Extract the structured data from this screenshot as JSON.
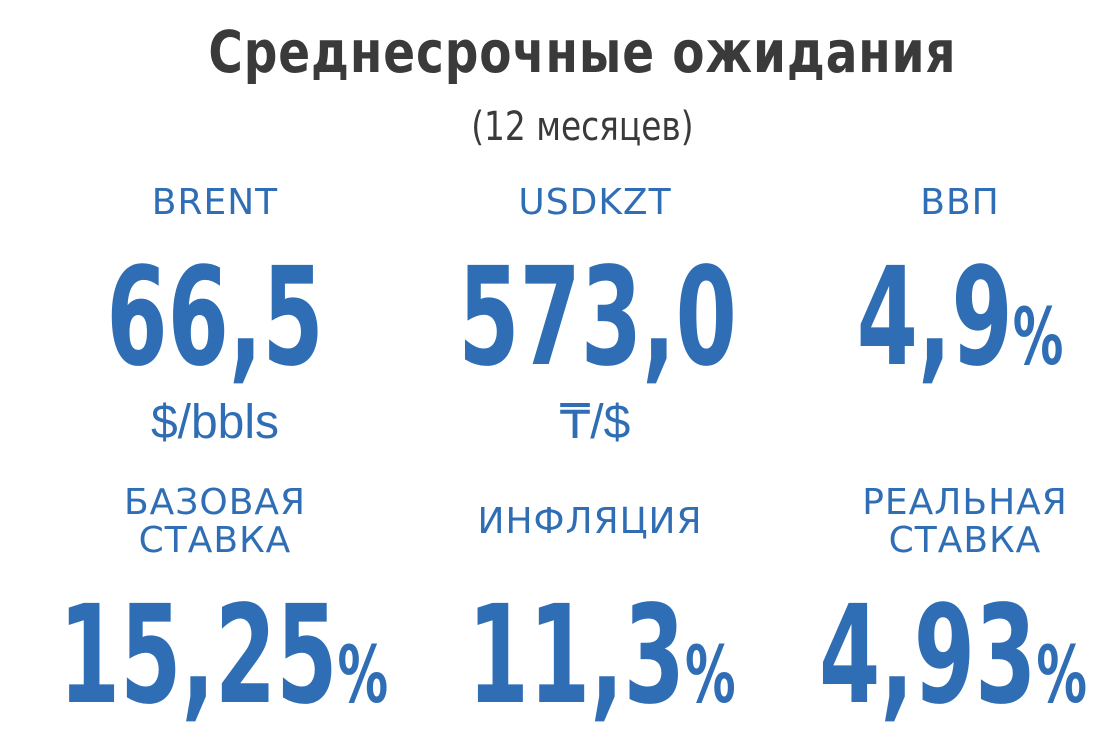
{
  "header": {
    "title": "Среднесрочные ожидания",
    "subtitle": "(12 месяцев)"
  },
  "indicators": [
    {
      "label": "BRENT",
      "value": "66,5",
      "unit": "$/bbls"
    },
    {
      "label": "USDKZT",
      "value": "573,0",
      "unit": "₸/$"
    },
    {
      "label": "ВВП",
      "value": "4,9",
      "unit": "%"
    },
    {
      "label_line1": "БАЗОВАЯ",
      "label_line2": "СТАВКА",
      "value": "15,25",
      "unit": "%"
    },
    {
      "label": "ИНФЛЯЦИЯ",
      "value": "11,3",
      "unit": "%"
    },
    {
      "label_line1": "РЕАЛЬНАЯ",
      "label_line2": "СТАВКА",
      "value": "4,93",
      "unit": "%"
    }
  ],
  "colors": {
    "accent": "#2f6eb5",
    "title": "#3a3a3a"
  }
}
